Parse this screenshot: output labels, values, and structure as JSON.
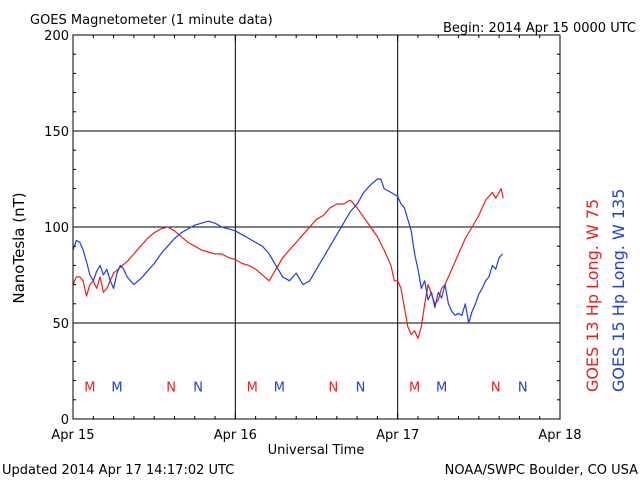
{
  "header": {
    "title": "GOES Magnetometer (1 minute data)",
    "begin": "Begin:  2014 Apr 15 0000 UTC"
  },
  "footer": {
    "updated": "Updated 2014 Apr 17 14:17:02 UTC",
    "credit": "NOAA/SWPC Boulder, CO USA"
  },
  "colors": {
    "goes13": "#e8201e",
    "goes15": "#1f3fd8",
    "grid": "#000000",
    "background": "#ffffff"
  },
  "chart_data": {
    "type": "line",
    "title": "GOES Magnetometer (1 minute data)",
    "xlabel": "Universal Time",
    "ylabel": "NanoTesla (nT)",
    "xlim": [
      0,
      72
    ],
    "ylim": [
      0,
      200
    ],
    "x_unit": "hours since 2014 Apr 15 0000 UTC",
    "x_ticks": [
      {
        "value": 0,
        "label": "Apr 15"
      },
      {
        "value": 24,
        "label": "Apr 16"
      },
      {
        "value": 48,
        "label": "Apr 17"
      },
      {
        "value": 72,
        "label": "Apr 18"
      }
    ],
    "y_ticks": [
      0,
      50,
      100,
      150,
      200
    ],
    "grid": true,
    "legend_placement": "right",
    "series": [
      {
        "name": "GOES 13 Hp  Long. W 75",
        "color": "#e8201e",
        "x": [
          0.0,
          0.5,
          1.0,
          1.5,
          2.0,
          2.5,
          3.0,
          3.5,
          4.0,
          4.5,
          5.0,
          5.5,
          6.0,
          7.0,
          8.0,
          9.0,
          10.0,
          11.0,
          12.0,
          13.0,
          14.0,
          15.0,
          16.0,
          17.0,
          18.0,
          19.0,
          20.0,
          21.0,
          22.0,
          23.0,
          24.0,
          25.0,
          26.0,
          27.0,
          28.0,
          29.0,
          30.0,
          31.0,
          32.0,
          33.0,
          34.0,
          35.0,
          36.0,
          37.0,
          38.0,
          39.0,
          40.0,
          41.0,
          42.0,
          43.0,
          44.0,
          45.0,
          46.0,
          47.0,
          47.5,
          48.0,
          48.5,
          49.0,
          49.5,
          50.0,
          50.5,
          51.0,
          51.5,
          52.0,
          52.5,
          53.0,
          53.5,
          54.0,
          54.5,
          55.0,
          56.0,
          57.0,
          58.0,
          59.0,
          60.0,
          61.0,
          62.0,
          62.5,
          63.0,
          63.3,
          63.6
        ],
        "y": [
          70,
          74,
          74,
          72,
          64,
          70,
          72,
          68,
          74,
          66,
          68,
          72,
          76,
          79,
          82,
          86,
          90,
          94,
          97,
          99,
          100,
          98,
          95,
          92,
          90,
          88,
          87,
          86,
          86,
          84,
          83,
          81,
          80,
          78,
          75,
          72,
          78,
          84,
          88,
          92,
          96,
          100,
          104,
          106,
          110,
          112,
          112,
          114,
          110,
          105,
          100,
          95,
          88,
          80,
          72,
          72,
          68,
          58,
          48,
          44,
          46,
          42,
          48,
          60,
          70,
          65,
          60,
          62,
          68,
          70,
          78,
          86,
          94,
          100,
          106,
          114,
          118,
          115,
          118,
          120,
          115
        ]
      },
      {
        "name": "GOES 15 Hp  Long. W 135",
        "color": "#1f3fd8",
        "x": [
          0.0,
          0.5,
          1.0,
          1.5,
          2.0,
          2.5,
          3.0,
          3.5,
          4.0,
          4.5,
          5.0,
          5.5,
          6.0,
          6.5,
          7.0,
          7.5,
          8.0,
          9.0,
          10.0,
          11.0,
          12.0,
          13.0,
          14.0,
          15.0,
          16.0,
          17.0,
          18.0,
          19.0,
          20.0,
          21.0,
          22.0,
          23.0,
          24.0,
          25.0,
          26.0,
          27.0,
          28.0,
          29.0,
          30.0,
          31.0,
          31.5,
          32.0,
          33.0,
          34.0,
          35.0,
          36.0,
          37.0,
          38.0,
          39.0,
          40.0,
          41.0,
          42.0,
          43.0,
          44.0,
          45.0,
          45.5,
          46.0,
          47.0,
          48.0,
          48.5,
          49.0,
          49.5,
          50.0,
          50.5,
          51.0,
          51.5,
          52.0,
          52.5,
          53.0,
          53.5,
          54.0,
          54.5,
          55.0,
          55.5,
          56.0,
          56.5,
          57.0,
          57.5,
          58.0,
          58.5,
          59.0,
          59.5,
          60.0,
          60.5,
          61.0,
          61.5,
          62.0,
          62.5,
          63.0,
          63.5
        ],
        "y": [
          88,
          93,
          92,
          88,
          82,
          75,
          72,
          77,
          80,
          75,
          78,
          72,
          68,
          76,
          80,
          78,
          74,
          70,
          73,
          77,
          81,
          86,
          90,
          94,
          97,
          99,
          101,
          102,
          103,
          102,
          100,
          99,
          98,
          96,
          94,
          92,
          90,
          86,
          80,
          74,
          73,
          72,
          76,
          70,
          72,
          78,
          84,
          90,
          96,
          102,
          108,
          112,
          118,
          122,
          125,
          125,
          120,
          118,
          116,
          112,
          110,
          104,
          98,
          86,
          78,
          68,
          72,
          62,
          66,
          58,
          66,
          63,
          70,
          60,
          56,
          54,
          55,
          54,
          60,
          50,
          56,
          60,
          65,
          68,
          72,
          74,
          80,
          78,
          84,
          86
        ]
      }
    ],
    "legend": [
      {
        "label": "GOES 13 Hp  Long. W 75",
        "color": "#e8201e"
      },
      {
        "label": "GOES 15 Hp  Long. W 135",
        "color": "#1f3fd8"
      }
    ],
    "annotations": [
      {
        "label": "M",
        "x": 2.5,
        "color": "#e8201e"
      },
      {
        "label": "M",
        "x": 6.5,
        "color": "#1f3fd8"
      },
      {
        "label": "N",
        "x": 14.5,
        "color": "#e8201e"
      },
      {
        "label": "N",
        "x": 18.5,
        "color": "#1f3fd8"
      },
      {
        "label": "M",
        "x": 26.5,
        "color": "#e8201e"
      },
      {
        "label": "M",
        "x": 30.5,
        "color": "#1f3fd8"
      },
      {
        "label": "N",
        "x": 38.5,
        "color": "#e8201e"
      },
      {
        "label": "N",
        "x": 42.5,
        "color": "#1f3fd8"
      },
      {
        "label": "M",
        "x": 50.5,
        "color": "#e8201e"
      },
      {
        "label": "M",
        "x": 54.5,
        "color": "#1f3fd8"
      },
      {
        "label": "N",
        "x": 62.5,
        "color": "#e8201e"
      },
      {
        "label": "N",
        "x": 66.5,
        "color": "#1f3fd8"
      }
    ],
    "annotation_y": 17
  }
}
